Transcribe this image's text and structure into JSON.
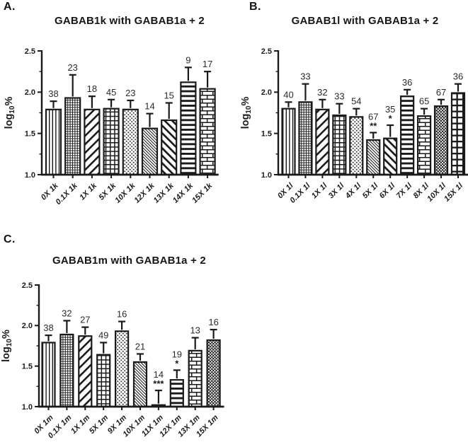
{
  "figure": {
    "background": "#ffffff",
    "ink_color": "#1a1a1a",
    "n_label_color": "#2b2b2b",
    "dots_light_color": "#3a3a3a",
    "dots_dense_color": "#1f1f1f"
  },
  "chart_data": [
    {
      "type": "bar",
      "panel_label": "A.",
      "title": "GABAB1k with GABAB1a + 2",
      "ylabel": "log10%",
      "ylabel_parts": {
        "base": "log",
        "sub": "10",
        "suffix": "%"
      },
      "ylim": [
        1.0,
        2.5
      ],
      "yticks": [
        1.0,
        1.5,
        2.0,
        2.5
      ],
      "ytick_labels": [
        "1.0",
        "1.5",
        "2.0",
        "2.5"
      ],
      "minor_yticks": [
        1.25,
        1.75,
        2.25
      ],
      "grid": false,
      "legend": "none",
      "categories": [
        "0X 1k",
        "0.1X 1k",
        "1X 1k",
        "5X 1k",
        "10X 1k",
        "12X 1k",
        "13X 1k",
        "14X 1k",
        "15X 1k"
      ],
      "values": [
        1.79,
        1.93,
        1.79,
        1.8,
        1.79,
        1.56,
        1.66,
        2.12,
        2.04
      ],
      "error_tops": [
        1.89,
        2.21,
        1.95,
        1.91,
        1.9,
        1.74,
        1.87,
        2.3,
        2.25
      ],
      "n_labels": [
        "38",
        "23",
        "18",
        "45",
        "23",
        "14",
        "15",
        "9",
        "17"
      ],
      "significance": [
        "",
        "",
        "",
        "",
        "",
        "",
        "",
        "",
        ""
      ],
      "bar_patterns": [
        "vertical-lines",
        "fine-grid",
        "diagonal-wide",
        "check-grid",
        "dots-light",
        "fine-hatch",
        "diagonal-medium",
        "horizontal-lines",
        "brick"
      ]
    },
    {
      "type": "bar",
      "panel_label": "B.",
      "title": "GABAB1l with GABAB1a + 2",
      "ylabel": "log10%",
      "ylabel_parts": {
        "base": "log",
        "sub": "10",
        "suffix": "%"
      },
      "ylim": [
        1.0,
        2.5
      ],
      "yticks": [
        1.0,
        1.5,
        2.0,
        2.5
      ],
      "ytick_labels": [
        "1.0",
        "1.5",
        "2.0",
        "2.5"
      ],
      "minor_yticks": [
        1.25,
        1.75,
        2.25
      ],
      "grid": false,
      "legend": "none",
      "categories": [
        "0X 1l",
        "0.1X 1l",
        "1X 1l",
        "3X 1l",
        "4X 1l",
        "5X 1l",
        "6X 1l",
        "7X 1l",
        "8X 1l",
        "10X 1l",
        "15X 1l"
      ],
      "values": [
        1.8,
        1.88,
        1.79,
        1.72,
        1.7,
        1.42,
        1.44,
        1.95,
        1.71,
        1.83,
        1.99
      ],
      "error_tops": [
        1.88,
        2.1,
        1.91,
        1.86,
        1.8,
        1.51,
        1.6,
        2.03,
        1.8,
        1.91,
        2.1
      ],
      "n_labels": [
        "40",
        "33",
        "32",
        "33",
        "54",
        "67",
        "35",
        "36",
        "65",
        "67",
        "36"
      ],
      "significance": [
        "",
        "",
        "",
        "",
        "",
        "**",
        "*",
        "",
        "",
        "",
        ""
      ],
      "bar_patterns": [
        "vertical-lines",
        "fine-grid",
        "diagonal-wide",
        "check-grid",
        "dots-light",
        "fine-hatch",
        "diagonal-medium",
        "horizontal-lines",
        "brick",
        "dots-dense",
        "large-grid"
      ]
    },
    {
      "type": "bar",
      "panel_label": "C.",
      "title": "GABAB1m with GABAB1a + 2",
      "ylabel": "log10%",
      "ylabel_parts": {
        "base": "log",
        "sub": "10",
        "suffix": "%"
      },
      "ylim": [
        1.0,
        2.5
      ],
      "yticks": [
        1.0,
        1.5,
        2.0,
        2.5
      ],
      "ytick_labels": [
        "1.0",
        "1.5",
        "2.0",
        "2.5"
      ],
      "minor_yticks": [
        1.25,
        1.75,
        2.25
      ],
      "grid": false,
      "legend": "none",
      "categories": [
        "0X 1m",
        "0.1X 1m",
        "1X 1m",
        "5X 1m",
        "9X 1m",
        "10X 1m",
        "11X 1m",
        "12X 1m",
        "13X 1m",
        "15X 1m"
      ],
      "values": [
        1.79,
        1.89,
        1.87,
        1.64,
        1.93,
        1.55,
        1.02,
        1.33,
        1.69,
        1.82
      ],
      "error_tops": [
        1.88,
        2.06,
        1.98,
        1.79,
        2.05,
        1.65,
        1.2,
        1.45,
        1.85,
        1.95
      ],
      "n_labels": [
        "38",
        "32",
        "27",
        "49",
        "16",
        "21",
        "14",
        "19",
        "13",
        "16"
      ],
      "significance": [
        "",
        "",
        "",
        "",
        "",
        "",
        "***",
        "*",
        "",
        ""
      ],
      "bar_patterns": [
        "vertical-lines",
        "fine-grid",
        "diagonal-wide",
        "check-grid",
        "dots-light",
        "fine-hatch",
        "plain",
        "horizontal-lines",
        "brick",
        "dots-dense"
      ]
    }
  ]
}
